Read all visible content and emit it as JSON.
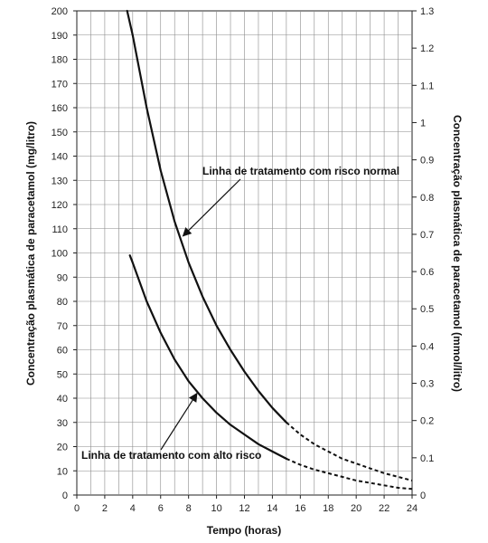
{
  "chart_data": {
    "type": "line",
    "xlabel": "Tempo (horas)",
    "ylabel": "Concentração plasmática de paracetamol (mg/litro)",
    "y2label": "Concentração plasmática de paracetamol (mmol/litro)",
    "xlim": [
      0,
      24
    ],
    "ylim": [
      0,
      200
    ],
    "y2lim": [
      0,
      1.3
    ],
    "x_ticks": [
      "0",
      "2",
      "4",
      "6",
      "8",
      "10",
      "12",
      "14",
      "16",
      "18",
      "20",
      "22",
      "24"
    ],
    "y_ticks": [
      "0",
      "10",
      "20",
      "30",
      "40",
      "50",
      "60",
      "70",
      "80",
      "90",
      "100",
      "110",
      "120",
      "130",
      "140",
      "150",
      "160",
      "170",
      "180",
      "190",
      "200"
    ],
    "y2_ticks": [
      "0",
      "0.1",
      "0.2",
      "0.3",
      "0.4",
      "0.5",
      "0.6",
      "0.7",
      "0.8",
      "0.9",
      "1",
      "1.1",
      "1.2",
      "1.3"
    ],
    "grid": true,
    "series": [
      {
        "name": "Linha de tratamento com risco normal",
        "color": "#111111",
        "solid": [
          [
            3.6,
            200
          ],
          [
            4,
            190
          ],
          [
            5,
            160
          ],
          [
            6,
            134
          ],
          [
            7,
            113
          ],
          [
            8,
            96
          ],
          [
            9,
            82
          ],
          [
            10,
            70
          ],
          [
            11,
            60
          ],
          [
            12,
            51
          ],
          [
            13,
            43
          ],
          [
            14,
            36
          ],
          [
            15,
            30
          ]
        ],
        "dashed": [
          [
            15,
            30
          ],
          [
            16,
            25
          ],
          [
            17,
            21
          ],
          [
            18,
            18
          ],
          [
            19,
            15
          ],
          [
            20,
            13
          ],
          [
            21,
            11
          ],
          [
            22,
            9
          ],
          [
            23,
            7.5
          ],
          [
            24,
            6
          ]
        ]
      },
      {
        "name": "Linha de tratamento com alto risco",
        "color": "#111111",
        "solid": [
          [
            3.8,
            99
          ],
          [
            4,
            96
          ],
          [
            5,
            80
          ],
          [
            6,
            67
          ],
          [
            7,
            56
          ],
          [
            8,
            47
          ],
          [
            9,
            40
          ],
          [
            10,
            34
          ],
          [
            11,
            29
          ],
          [
            12,
            25
          ],
          [
            13,
            21
          ],
          [
            14,
            18
          ],
          [
            15,
            15
          ]
        ],
        "dashed": [
          [
            15,
            15
          ],
          [
            16,
            12.5
          ],
          [
            17,
            10.5
          ],
          [
            18,
            9
          ],
          [
            19,
            7.5
          ],
          [
            20,
            6
          ],
          [
            21,
            5
          ],
          [
            22,
            4
          ],
          [
            23,
            3
          ],
          [
            24,
            2.5
          ]
        ]
      }
    ],
    "annotations": [
      {
        "text": "Linha de tratamento com risco normal",
        "point": [
          7.6,
          107
        ]
      },
      {
        "text": "Linha de tratamento com alto risco",
        "point": [
          8.6,
          42
        ]
      }
    ]
  }
}
